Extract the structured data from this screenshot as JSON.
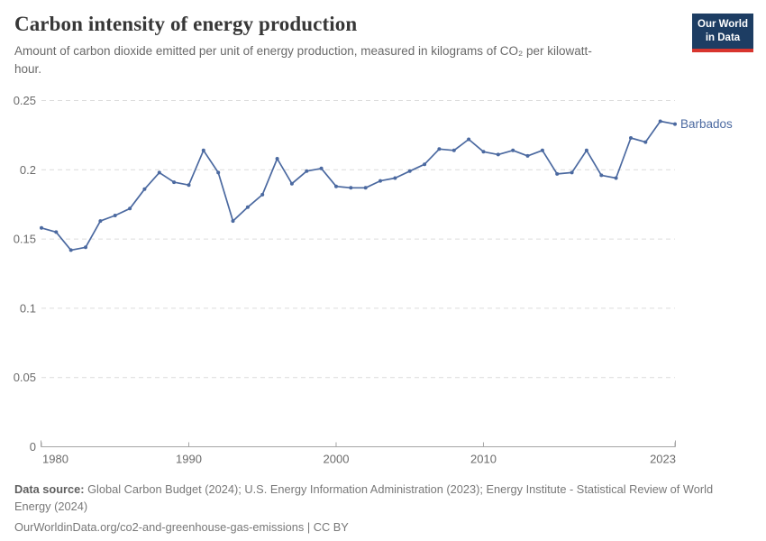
{
  "header": {
    "title": "Carbon intensity of energy production",
    "subtitle": "Amount of carbon dioxide emitted per unit of energy production, measured in kilograms of CO₂ per kilowatt-hour.",
    "logo": {
      "line1": "Our World",
      "line2": "in Data"
    }
  },
  "chart_data": {
    "type": "line",
    "title": "Carbon intensity of energy production",
    "series": [
      {
        "name": "Barbados",
        "color": "#4b69a0",
        "x": [
          1980,
          1981,
          1982,
          1983,
          1984,
          1985,
          1986,
          1987,
          1988,
          1989,
          1990,
          1991,
          1992,
          1993,
          1994,
          1995,
          1996,
          1997,
          1998,
          1999,
          2000,
          2001,
          2002,
          2003,
          2004,
          2005,
          2006,
          2007,
          2008,
          2009,
          2010,
          2011,
          2012,
          2013,
          2014,
          2015,
          2016,
          2017,
          2018,
          2019,
          2020,
          2021,
          2022,
          2023
        ],
        "values": [
          0.158,
          0.155,
          0.142,
          0.144,
          0.163,
          0.167,
          0.172,
          0.186,
          0.198,
          0.191,
          0.189,
          0.214,
          0.198,
          0.163,
          0.173,
          0.182,
          0.208,
          0.19,
          0.199,
          0.201,
          0.188,
          0.187,
          0.187,
          0.192,
          0.194,
          0.199,
          0.204,
          0.215,
          0.214,
          0.222,
          0.213,
          0.211,
          0.214,
          0.21,
          0.214,
          0.197,
          0.198,
          0.214,
          0.196,
          0.194,
          0.223,
          0.22,
          0.235,
          0.233
        ]
      }
    ],
    "x_range": [
      1980,
      2023
    ],
    "ylim": [
      0,
      0.25
    ],
    "yticks": [
      {
        "value": 0,
        "label": "0"
      },
      {
        "value": 0.05,
        "label": "0.05"
      },
      {
        "value": 0.1,
        "label": "0.1"
      },
      {
        "value": 0.15,
        "label": "0.15"
      },
      {
        "value": 0.2,
        "label": "0.2"
      },
      {
        "value": 0.25,
        "label": "0.25"
      }
    ],
    "xticks": [
      {
        "value": 1980,
        "label": "1980"
      },
      {
        "value": 1990,
        "label": "1990"
      },
      {
        "value": 2000,
        "label": "2000"
      },
      {
        "value": 2010,
        "label": "2010"
      },
      {
        "value": 2023,
        "label": "2023"
      }
    ],
    "grid": true,
    "legend_position": "end-of-line",
    "end_label": "Barbados",
    "colors": {
      "line": "#4b69a0",
      "grid": "#dcdcdc",
      "axis": "#a5a5a5",
      "tick_text": "#6b6b6b"
    }
  },
  "footer": {
    "source_label": "Data source:",
    "source_text": " Global Carbon Budget (2024); U.S. Energy Information Administration (2023); Energy Institute - Statistical Review of World Energy (2024)",
    "license_line": "OurWorldinData.org/co2-and-greenhouse-gas-emissions | CC BY"
  }
}
